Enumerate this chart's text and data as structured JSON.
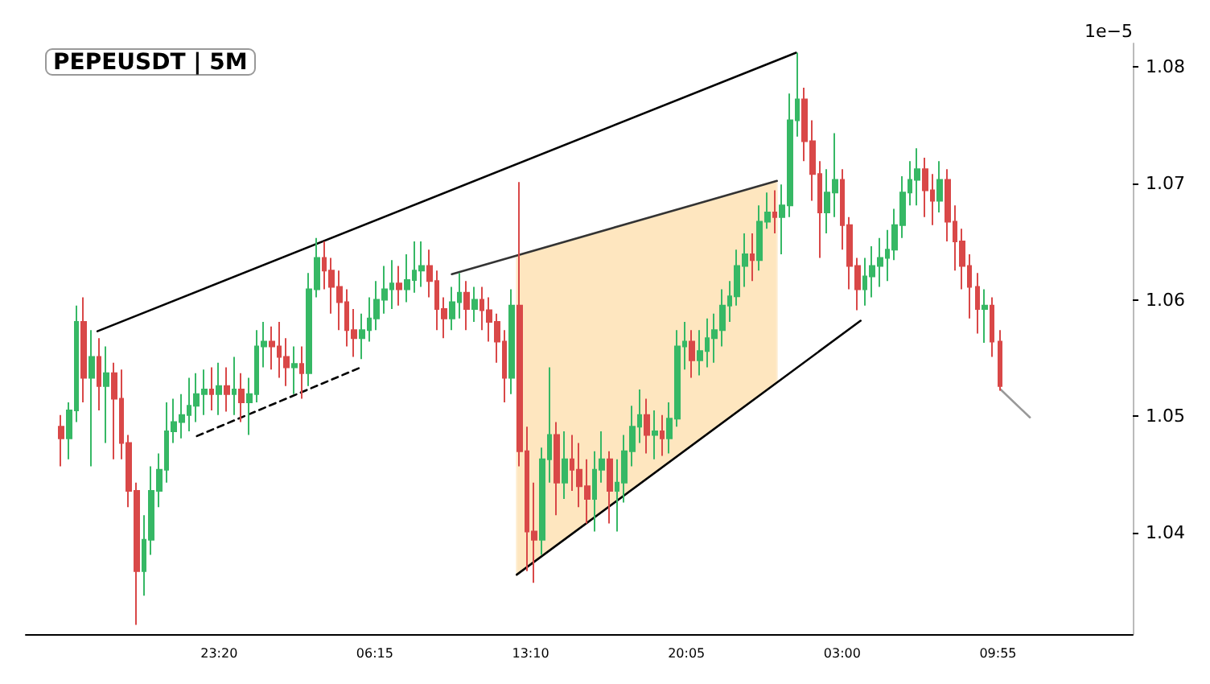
{
  "chart_data": {
    "type": "candlestick",
    "title": "PEPEUSDT | 5M",
    "ylabel": "1e−5",
    "xlim": [
      "--01-01T14:45",
      "--01-03T15:54"
    ],
    "xticks": [
      {
        "value": "--01-01T23:20",
        "label": "23:20"
      },
      {
        "value": "--01-02T06:15",
        "label": "06:15"
      },
      {
        "value": "--01-02T13:10",
        "label": "13:10"
      },
      {
        "value": "--01-02T20:05",
        "label": "20:05"
      },
      {
        "value": "--01-03T03:00",
        "label": "03:00"
      },
      {
        "value": "--01-03T09:55",
        "label": "09:55"
      }
    ],
    "ylim": [
      1.0313,
      1.082
    ],
    "yticks": [
      1.04,
      1.05,
      1.06,
      1.07,
      1.08
    ],
    "grid": false,
    "marker": "none",
    "series": [
      {
        "type": "line",
        "x": [
          "--01-02T12:33",
          "--01-03T00:06"
        ],
        "values": [
          null,
          null
        ],
        "lower": [
          1.0364,
          1.0529
        ],
        "upper": [
          1.0638,
          1.0702
        ],
        "color": "#fee6bf"
      },
      {
        "type": "line",
        "x": [
          "--01-01T17:56",
          "--01-03T00:57"
        ],
        "values": [
          1.0573,
          1.0812
        ],
        "color": "#000000",
        "line_style": "solid"
      },
      {
        "type": "line",
        "x": [
          "--01-01T22:21",
          "--01-02T05:38"
        ],
        "values": [
          1.0483,
          1.0542
        ],
        "color": "#000000",
        "line_style": "dashed"
      },
      {
        "type": "line",
        "x": [
          "--01-02T09:40",
          "--01-03T00:06"
        ],
        "values": [
          1.0622,
          1.0702
        ],
        "color": "#333333",
        "line_style": "solid"
      },
      {
        "type": "line",
        "x": [
          "--01-02T12:33",
          "--01-03T03:49"
        ],
        "values": [
          1.0364,
          1.0582
        ],
        "color": "#000000",
        "line_style": "solid"
      },
      {
        "type": "line",
        "x": [
          "--01-03T10:02",
          "--01-03T11:20"
        ],
        "values": [
          1.0523,
          1.0499
        ],
        "color": "#999999",
        "line_style": "solid"
      },
      {
        "x": [
          "--01-01T16:20",
          "--01-01T16:40",
          "--01-01T17:00",
          "--01-01T17:20",
          "--01-01T17:40",
          "--01-01T18:00",
          "--01-01T18:20",
          "--01-01T18:40",
          "--01-01T19:00",
          "--01-01T19:20",
          "--01-01T19:40",
          "--01-01T20:00",
          "--01-01T20:20",
          "--01-01T20:40",
          "--01-01T21:00",
          "--01-01T21:20",
          "--01-01T21:40",
          "--01-01T22:00",
          "--01-01T22:20",
          "--01-01T22:40",
          "--01-01T23:00",
          "--01-01T23:20",
          "--01-01T23:40",
          "--01-02T00:00",
          "--01-02T00:20",
          "--01-02T00:40",
          "--01-02T01:00",
          "--01-02T01:20",
          "--01-02T01:40",
          "--01-02T02:00",
          "--01-02T02:20",
          "--01-02T02:40",
          "--01-02T03:00",
          "--01-02T03:20",
          "--01-02T03:40",
          "--01-02T04:00",
          "--01-02T04:20",
          "--01-02T04:40",
          "--01-02T05:00",
          "--01-02T05:20",
          "--01-02T05:40",
          "--01-02T06:00",
          "--01-02T06:20",
          "--01-02T06:40",
          "--01-02T07:00",
          "--01-02T07:20",
          "--01-02T07:40",
          "--01-02T08:00",
          "--01-02T08:20",
          "--01-02T08:40",
          "--01-02T09:00",
          "--01-02T09:20",
          "--01-02T09:40",
          "--01-02T10:00",
          "--01-02T10:20",
          "--01-02T10:40",
          "--01-02T11:00",
          "--01-02T11:20",
          "--01-02T11:40",
          "--01-02T12:00",
          "--01-02T12:20",
          "--01-02T12:40",
          "--01-02T13:00",
          "--01-02T13:20",
          "--01-02T13:40",
          "--01-02T14:00",
          "--01-02T14:20",
          "--01-02T14:40",
          "--01-02T15:00",
          "--01-02T15:20",
          "--01-02T15:40",
          "--01-02T16:00",
          "--01-02T16:20",
          "--01-02T16:40",
          "--01-02T17:00",
          "--01-02T17:20",
          "--01-02T17:40",
          "--01-02T18:00",
          "--01-02T18:20",
          "--01-02T18:40",
          "--01-02T19:00",
          "--01-02T19:20",
          "--01-02T19:40",
          "--01-02T20:00",
          "--01-02T20:20",
          "--01-02T20:40",
          "--01-02T21:00",
          "--01-02T21:20",
          "--01-02T21:40",
          "--01-02T22:00",
          "--01-02T22:20",
          "--01-02T22:40",
          "--01-02T23:00",
          "--01-02T23:20",
          "--01-02T23:40",
          "--01-03T00:00",
          "--01-03T00:20",
          "--01-03T00:40",
          "--01-03T01:00",
          "--01-03T01:20",
          "--01-03T01:40",
          "--01-03T02:00",
          "--01-03T02:20",
          "--01-03T02:40",
          "--01-03T03:00",
          "--01-03T03:20",
          "--01-03T03:40",
          "--01-03T04:00",
          "--01-03T04:20",
          "--01-03T04:40",
          "--01-03T05:00",
          "--01-03T05:20",
          "--01-03T05:40",
          "--01-03T06:00",
          "--01-03T06:20",
          "--01-03T06:40",
          "--01-03T07:00",
          "--01-03T07:20",
          "--01-03T07:40",
          "--01-03T08:00",
          "--01-03T08:20",
          "--01-03T08:40",
          "--01-03T09:00",
          "--01-03T09:20",
          "--01-03T09:40",
          "--01-03T10:00"
        ],
        "ohlc": [
          [
            1.0491,
            1.0501,
            1.0457,
            1.0481
          ],
          [
            1.0481,
            1.0512,
            1.0463,
            1.0505
          ],
          [
            1.0505,
            1.0595,
            1.0495,
            1.0581
          ],
          [
            1.0581,
            1.0602,
            1.0512,
            1.0533
          ],
          [
            1.0533,
            1.0574,
            1.0457,
            1.0551
          ],
          [
            1.0551,
            1.0567,
            1.0505,
            1.0526
          ],
          [
            1.0526,
            1.056,
            1.0477,
            1.0537
          ],
          [
            1.0537,
            1.0546,
            1.0463,
            1.0515
          ],
          [
            1.0515,
            1.054,
            1.0463,
            1.0477
          ],
          [
            1.0477,
            1.0484,
            1.0422,
            1.0436
          ],
          [
            1.0436,
            1.0443,
            1.0321,
            1.0367
          ],
          [
            1.0367,
            1.0415,
            1.0346,
            1.0394
          ],
          [
            1.0394,
            1.0457,
            1.0381,
            1.0436
          ],
          [
            1.0436,
            1.0468,
            1.0422,
            1.0454
          ],
          [
            1.0454,
            1.0512,
            1.0443,
            1.0487
          ],
          [
            1.0487,
            1.0515,
            1.0477,
            1.0495
          ],
          [
            1.0495,
            1.0519,
            1.0481,
            1.0501
          ],
          [
            1.0501,
            1.0533,
            1.0487,
            1.0509
          ],
          [
            1.0509,
            1.0537,
            1.0495,
            1.0519
          ],
          [
            1.0519,
            1.054,
            1.0501,
            1.0523
          ],
          [
            1.0523,
            1.0542,
            1.0505,
            1.0519
          ],
          [
            1.0519,
            1.0546,
            1.0501,
            1.0526
          ],
          [
            1.0526,
            1.0542,
            1.0504,
            1.0519
          ],
          [
            1.0519,
            1.0551,
            1.0501,
            1.0523
          ],
          [
            1.0523,
            1.0537,
            1.0495,
            1.0512
          ],
          [
            1.0512,
            1.0533,
            1.0484,
            1.0519
          ],
          [
            1.0519,
            1.0574,
            1.0512,
            1.056
          ],
          [
            1.056,
            1.0581,
            1.0542,
            1.0564
          ],
          [
            1.0564,
            1.0577,
            1.054,
            1.056
          ],
          [
            1.056,
            1.0581,
            1.0533,
            1.0551
          ],
          [
            1.0551,
            1.0567,
            1.0526,
            1.0542
          ],
          [
            1.0542,
            1.056,
            1.0519,
            1.0545
          ],
          [
            1.0545,
            1.056,
            1.0515,
            1.0537
          ],
          [
            1.0537,
            1.0623,
            1.0526,
            1.0609
          ],
          [
            1.0609,
            1.0653,
            1.0602,
            1.0636
          ],
          [
            1.0636,
            1.065,
            1.0609,
            1.0625
          ],
          [
            1.0625,
            1.0636,
            1.0588,
            1.0611
          ],
          [
            1.0611,
            1.0625,
            1.0574,
            1.0598
          ],
          [
            1.0598,
            1.0609,
            1.056,
            1.0574
          ],
          [
            1.0574,
            1.0592,
            1.0551,
            1.0567
          ],
          [
            1.0567,
            1.0588,
            1.0549,
            1.0574
          ],
          [
            1.0574,
            1.0602,
            1.0564,
            1.0584
          ],
          [
            1.0584,
            1.0616,
            1.0574,
            1.06
          ],
          [
            1.06,
            1.0629,
            1.0588,
            1.0609
          ],
          [
            1.0609,
            1.0634,
            1.0592,
            1.0614
          ],
          [
            1.0614,
            1.0629,
            1.0595,
            1.0609
          ],
          [
            1.0609,
            1.0639,
            1.0598,
            1.0617
          ],
          [
            1.0617,
            1.065,
            1.0606,
            1.0625
          ],
          [
            1.0625,
            1.065,
            1.0611,
            1.0629
          ],
          [
            1.0629,
            1.0643,
            1.0602,
            1.0616
          ],
          [
            1.0616,
            1.0625,
            1.0574,
            1.0592
          ],
          [
            1.0592,
            1.0602,
            1.0567,
            1.0584
          ],
          [
            1.0584,
            1.0611,
            1.0574,
            1.0598
          ],
          [
            1.0598,
            1.0623,
            1.0584,
            1.0606
          ],
          [
            1.0606,
            1.0616,
            1.0574,
            1.0592
          ],
          [
            1.0592,
            1.0611,
            1.0581,
            1.06
          ],
          [
            1.06,
            1.0611,
            1.0574,
            1.0591
          ],
          [
            1.0591,
            1.0602,
            1.0564,
            1.0581
          ],
          [
            1.0581,
            1.0588,
            1.0546,
            1.0564
          ],
          [
            1.0564,
            1.0574,
            1.0512,
            1.0533
          ],
          [
            1.0533,
            1.0609,
            1.0519,
            1.0595
          ],
          [
            1.0595,
            1.0701,
            1.0457,
            1.047
          ],
          [
            1.047,
            1.0491,
            1.0367,
            1.0401
          ],
          [
            1.0401,
            1.0443,
            1.0357,
            1.0394
          ],
          [
            1.0394,
            1.0473,
            1.0381,
            1.0463
          ],
          [
            1.0463,
            1.0542,
            1.0443,
            1.0484
          ],
          [
            1.0484,
            1.0495,
            1.0415,
            1.0443
          ],
          [
            1.0443,
            1.0487,
            1.0429,
            1.0463
          ],
          [
            1.0463,
            1.0484,
            1.0436,
            1.0454
          ],
          [
            1.0454,
            1.0477,
            1.0422,
            1.044
          ],
          [
            1.044,
            1.0463,
            1.0408,
            1.0429
          ],
          [
            1.0429,
            1.047,
            1.0401,
            1.0454
          ],
          [
            1.0454,
            1.0487,
            1.0443,
            1.0463
          ],
          [
            1.0463,
            1.047,
            1.0408,
            1.0436
          ],
          [
            1.0436,
            1.0463,
            1.0401,
            1.0443
          ],
          [
            1.0443,
            1.0484,
            1.0426,
            1.047
          ],
          [
            1.047,
            1.0509,
            1.0457,
            1.0491
          ],
          [
            1.0491,
            1.0523,
            1.0477,
            1.0501
          ],
          [
            1.0501,
            1.0515,
            1.0468,
            1.0484
          ],
          [
            1.0484,
            1.0505,
            1.0463,
            1.0487
          ],
          [
            1.0487,
            1.0501,
            1.0466,
            1.0481
          ],
          [
            1.0481,
            1.0512,
            1.0468,
            1.0498
          ],
          [
            1.0498,
            1.0574,
            1.0491,
            1.056
          ],
          [
            1.056,
            1.0581,
            1.054,
            1.0564
          ],
          [
            1.0564,
            1.0574,
            1.0533,
            1.0548
          ],
          [
            1.0548,
            1.0574,
            1.0535,
            1.0556
          ],
          [
            1.0556,
            1.0584,
            1.0542,
            1.0567
          ],
          [
            1.0567,
            1.0588,
            1.0546,
            1.0574
          ],
          [
            1.0574,
            1.0609,
            1.056,
            1.0595
          ],
          [
            1.0595,
            1.0616,
            1.0581,
            1.0603
          ],
          [
            1.0603,
            1.0643,
            1.0595,
            1.0629
          ],
          [
            1.0629,
            1.0657,
            1.0611,
            1.0639
          ],
          [
            1.0639,
            1.0657,
            1.0616,
            1.0634
          ],
          [
            1.0634,
            1.0681,
            1.0625,
            1.0667
          ],
          [
            1.0667,
            1.0692,
            1.0661,
            1.0675
          ],
          [
            1.0675,
            1.0694,
            1.0657,
            1.0671
          ],
          [
            1.0671,
            1.0699,
            1.0639,
            1.0681
          ],
          [
            1.0681,
            1.0777,
            1.0671,
            1.0754
          ],
          [
            1.0754,
            1.0812,
            1.074,
            1.0772
          ],
          [
            1.0772,
            1.0782,
            1.0719,
            1.0736
          ],
          [
            1.0736,
            1.0754,
            1.0685,
            1.0708
          ],
          [
            1.0708,
            1.0719,
            1.0636,
            1.0675
          ],
          [
            1.0675,
            1.0712,
            1.0657,
            1.0692
          ],
          [
            1.0692,
            1.0743,
            1.0671,
            1.0703
          ],
          [
            1.0703,
            1.0712,
            1.0643,
            1.0664
          ],
          [
            1.0664,
            1.0671,
            1.0609,
            1.0629
          ],
          [
            1.0629,
            1.0636,
            1.0591,
            1.0609
          ],
          [
            1.0609,
            1.0636,
            1.0595,
            1.062
          ],
          [
            1.062,
            1.0646,
            1.0602,
            1.0629
          ],
          [
            1.0629,
            1.0653,
            1.0611,
            1.0636
          ],
          [
            1.0636,
            1.066,
            1.0616,
            1.0643
          ],
          [
            1.0643,
            1.0678,
            1.0634,
            1.0664
          ],
          [
            1.0664,
            1.0706,
            1.0653,
            1.0692
          ],
          [
            1.0692,
            1.0719,
            1.0681,
            1.0703
          ],
          [
            1.0703,
            1.073,
            1.0681,
            1.0712
          ],
          [
            1.0712,
            1.0722,
            1.0671,
            1.0694
          ],
          [
            1.0694,
            1.0708,
            1.0664,
            1.0685
          ],
          [
            1.0685,
            1.0719,
            1.0675,
            1.0703
          ],
          [
            1.0703,
            1.0712,
            1.065,
            1.0667
          ],
          [
            1.0667,
            1.0681,
            1.0625,
            1.065
          ],
          [
            1.065,
            1.0661,
            1.0609,
            1.0629
          ],
          [
            1.0629,
            1.0639,
            1.0584,
            1.0611
          ],
          [
            1.0611,
            1.0623,
            1.0571,
            1.0592
          ],
          [
            1.0592,
            1.0609,
            1.0563,
            1.0595
          ],
          [
            1.0595,
            1.0602,
            1.0551,
            1.0564
          ],
          [
            1.0564,
            1.0574,
            1.0522,
            1.0526
          ]
        ],
        "colors": [
          "#d94848",
          "#36b865",
          "#36b865",
          "#d94848",
          "#36b865",
          "#d94848",
          "#36b865",
          "#d94848",
          "#d94848",
          "#d94848",
          "#d94848",
          "#36b865",
          "#36b865",
          "#36b865",
          "#36b865",
          "#36b865",
          "#36b865",
          "#36b865",
          "#36b865",
          "#36b865",
          "#d94848",
          "#36b865",
          "#d94848",
          "#36b865",
          "#d94848",
          "#36b865",
          "#36b865",
          "#36b865",
          "#d94848",
          "#d94848",
          "#d94848",
          "#36b865",
          "#d94848",
          "#36b865",
          "#36b865",
          "#d94848",
          "#d94848",
          "#d94848",
          "#d94848",
          "#d94848",
          "#36b865",
          "#36b865",
          "#36b865",
          "#36b865",
          "#36b865",
          "#d94848",
          "#36b865",
          "#36b865",
          "#36b865",
          "#d94848",
          "#d94848",
          "#d94848",
          "#36b865",
          "#36b865",
          "#d94848",
          "#36b865",
          "#d94848",
          "#d94848",
          "#d94848",
          "#d94848",
          "#36b865",
          "#d94848",
          "#d94848",
          "#d94848",
          "#36b865",
          "#36b865",
          "#d94848",
          "#36b865",
          "#d94848",
          "#d94848",
          "#d94848",
          "#36b865",
          "#36b865",
          "#d94848",
          "#36b865",
          "#36b865",
          "#36b865",
          "#36b865",
          "#d94848",
          "#36b865",
          "#d94848",
          "#36b865",
          "#36b865",
          "#36b865",
          "#d94848",
          "#36b865",
          "#36b865",
          "#36b865",
          "#36b865",
          "#36b865",
          "#36b865",
          "#36b865",
          "#d94848",
          "#36b865",
          "#36b865",
          "#d94848",
          "#36b865",
          "#36b865",
          "#36b865",
          "#d94848",
          "#d94848",
          "#d94848",
          "#36b865",
          "#36b865",
          "#d94848",
          "#d94848",
          "#d94848",
          "#36b865",
          "#36b865",
          "#36b865",
          "#36b865",
          "#36b865",
          "#36b865",
          "#36b865",
          "#36b865",
          "#d94848",
          "#d94848",
          "#36b865",
          "#d94848",
          "#d94848",
          "#d94848",
          "#d94848",
          "#d94848",
          "#36b865",
          "#d94848",
          "#d94848"
        ]
      }
    ]
  }
}
